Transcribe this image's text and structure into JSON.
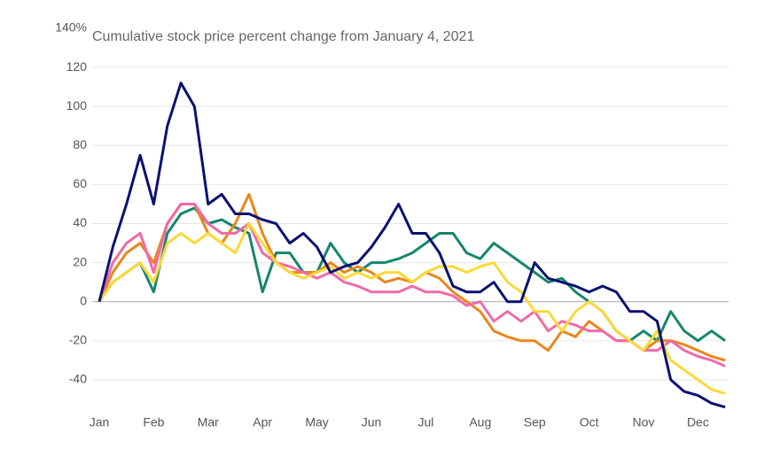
{
  "chart_data": {
    "type": "line",
    "title": "Cumulative stock price percent change from January 4, 2021",
    "categories": [
      "Jan",
      null,
      null,
      null,
      "Feb",
      null,
      null,
      null,
      "Mar",
      null,
      null,
      null,
      "Apr",
      null,
      null,
      null,
      "May",
      null,
      null,
      null,
      "Jun",
      null,
      null,
      null,
      "Jul",
      null,
      null,
      null,
      "Aug",
      null,
      null,
      null,
      "Sep",
      null,
      null,
      null,
      "Oct",
      null,
      null,
      null,
      "Nov",
      null,
      null,
      null,
      "Dec",
      null,
      null
    ],
    "series": [
      {
        "color": "#15876b",
        "values": [
          0,
          10,
          15,
          20,
          5,
          35,
          45,
          48,
          40,
          42,
          38,
          35,
          5,
          25,
          25,
          15,
          15,
          30,
          20,
          15,
          20,
          20,
          22,
          25,
          30,
          35,
          35,
          25,
          22,
          30,
          25,
          20,
          15,
          10,
          12,
          5,
          0,
          -5,
          -15,
          -20,
          -15,
          -20,
          -5,
          -15,
          -20,
          -15,
          -20
        ]
      },
      {
        "color": "#e9871b",
        "values": [
          0,
          15,
          25,
          30,
          20,
          40,
          50,
          50,
          35,
          30,
          40,
          55,
          35,
          20,
          15,
          15,
          15,
          20,
          15,
          18,
          15,
          10,
          12,
          10,
          15,
          12,
          5,
          0,
          -5,
          -15,
          -18,
          -20,
          -20,
          -25,
          -15,
          -18,
          -10,
          -15,
          -20,
          -20,
          -25,
          -20,
          -20,
          -22,
          -25,
          -28,
          -30
        ]
      },
      {
        "color": "#f06aa8",
        "values": [
          0,
          20,
          30,
          35,
          15,
          40,
          50,
          50,
          40,
          35,
          35,
          40,
          25,
          20,
          18,
          15,
          12,
          15,
          10,
          8,
          5,
          5,
          5,
          8,
          5,
          5,
          3,
          -2,
          0,
          -10,
          -5,
          -10,
          -5,
          -15,
          -10,
          -12,
          -15,
          -15,
          -20,
          -20,
          -25,
          -25,
          -20,
          -25,
          -28,
          -30,
          -33
        ]
      },
      {
        "color": "#fbd938",
        "values": [
          0,
          10,
          15,
          20,
          10,
          30,
          35,
          30,
          35,
          30,
          25,
          40,
          30,
          20,
          15,
          12,
          15,
          18,
          12,
          15,
          12,
          15,
          15,
          10,
          15,
          18,
          18,
          15,
          18,
          20,
          10,
          5,
          -5,
          -5,
          -15,
          -5,
          0,
          -5,
          -15,
          -20,
          -25,
          -15,
          -30,
          -35,
          -40,
          -45,
          -47
        ]
      },
      {
        "color": "#0a1172",
        "values": [
          0,
          28,
          50,
          75,
          50,
          90,
          112,
          100,
          50,
          55,
          45,
          45,
          42,
          40,
          30,
          35,
          28,
          15,
          18,
          20,
          28,
          38,
          50,
          35,
          35,
          25,
          8,
          5,
          5,
          10,
          0,
          0,
          20,
          12,
          10,
          8,
          5,
          8,
          5,
          -5,
          -5,
          -10,
          -40,
          -46,
          -48,
          -52,
          -54
        ]
      }
    ],
    "ylim": [
      -55,
      140
    ],
    "yticks": [
      {
        "value": 140,
        "label": "140%"
      },
      120,
      100,
      80,
      60,
      40,
      20,
      0,
      -20,
      -40
    ],
    "grid": true
  }
}
